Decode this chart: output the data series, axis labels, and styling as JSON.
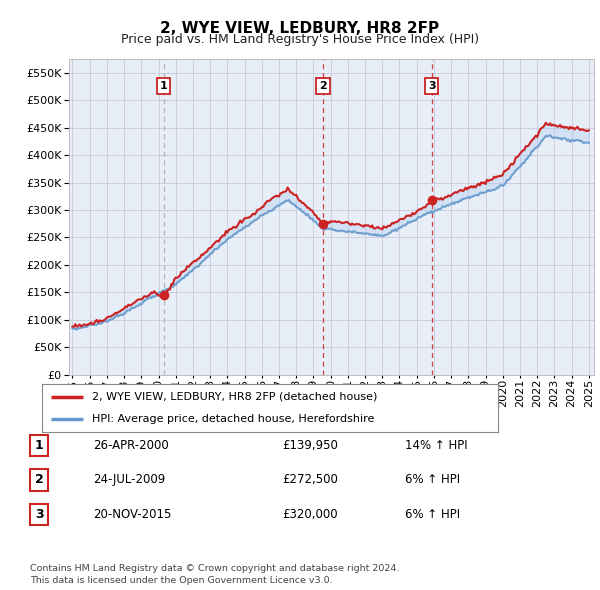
{
  "title": "2, WYE VIEW, LEDBURY, HR8 2FP",
  "subtitle": "Price paid vs. HM Land Registry's House Price Index (HPI)",
  "ytick_values": [
    0,
    50000,
    100000,
    150000,
    200000,
    250000,
    300000,
    350000,
    400000,
    450000,
    500000,
    550000
  ],
  "xlim_start": 1994.8,
  "xlim_end": 2025.3,
  "ylim_min": 0,
  "ylim_max": 575000,
  "transactions": [
    {
      "num": 1,
      "date_dec": 2000.3,
      "price": 139950,
      "label": "1",
      "date_str": "26-APR-2000",
      "pct": "14%",
      "dir": "↑",
      "vline_style": "dashed_gray"
    },
    {
      "num": 2,
      "date_dec": 2009.55,
      "price": 272500,
      "label": "2",
      "date_str": "24-JUL-2009",
      "pct": "6%",
      "dir": "↑",
      "vline_style": "dashed_red"
    },
    {
      "num": 3,
      "date_dec": 2015.88,
      "price": 320000,
      "label": "3",
      "date_str": "20-NOV-2015",
      "pct": "6%",
      "dir": "↑",
      "vline_style": "dashed_red"
    }
  ],
  "legend_entries": [
    {
      "label": "2, WYE VIEW, LEDBURY, HR8 2FP (detached house)",
      "color": "#cc2222",
      "lw": 1.5
    },
    {
      "label": "HPI: Average price, detached house, Herefordshire",
      "color": "#6699cc",
      "lw": 1.5
    }
  ],
  "footer": "Contains HM Land Registry data © Crown copyright and database right 2024.\nThis data is licensed under the Open Government Licence v3.0.",
  "transaction_vline_color_red": "#cc2222",
  "transaction_vline_color_gray": "#aaaaaa",
  "grid_color": "#ccccdd",
  "bg_color": "#ffffff",
  "plot_bg_color": "#e8eef8",
  "title_fontsize": 11,
  "subtitle_fontsize": 9,
  "tick_fontsize": 8,
  "xticks": [
    1995,
    1996,
    1997,
    1998,
    1999,
    2000,
    2001,
    2002,
    2003,
    2004,
    2005,
    2006,
    2007,
    2008,
    2009,
    2010,
    2011,
    2012,
    2013,
    2014,
    2015,
    2016,
    2017,
    2018,
    2019,
    2020,
    2021,
    2022,
    2023,
    2024,
    2025
  ]
}
